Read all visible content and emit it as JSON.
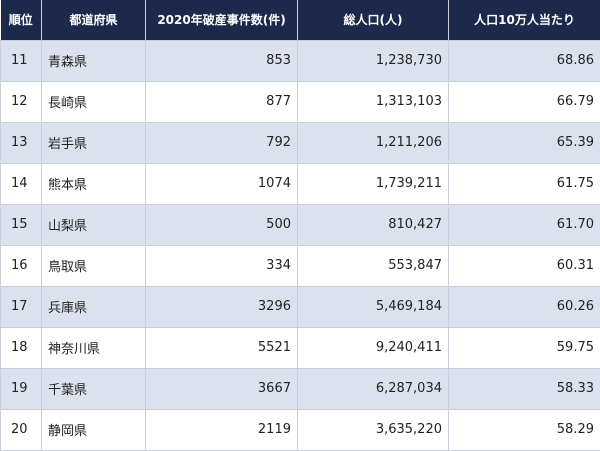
{
  "table": {
    "header": [
      "順位",
      "都道府県",
      "2020年破産事件数(件)",
      "総人口(人)",
      "人口10万人当たり"
    ],
    "rows": [
      [
        "11",
        "青森県",
        "853",
        "1,238,730",
        "68.86"
      ],
      [
        "12",
        "長崎県",
        "877",
        "1,313,103",
        "66.79"
      ],
      [
        "13",
        "岩手県",
        "792",
        "1,211,206",
        "65.39"
      ],
      [
        "14",
        "熊本県",
        "1074",
        "1,739,211",
        "61.75"
      ],
      [
        "15",
        "山梨県",
        "500",
        "810,427",
        "61.70"
      ],
      [
        "16",
        "鳥取県",
        "334",
        "553,847",
        "60.31"
      ],
      [
        "17",
        "兵庫県",
        "3296",
        "5,469,184",
        "60.26"
      ],
      [
        "18",
        "神奈川県",
        "5521",
        "9,240,411",
        "59.75"
      ],
      [
        "19",
        "千葉県",
        "3667",
        "6,287,034",
        "58.33"
      ],
      [
        "20",
        "静岡県",
        "2119",
        "3,635,220",
        "58.29"
      ]
    ]
  }
}
